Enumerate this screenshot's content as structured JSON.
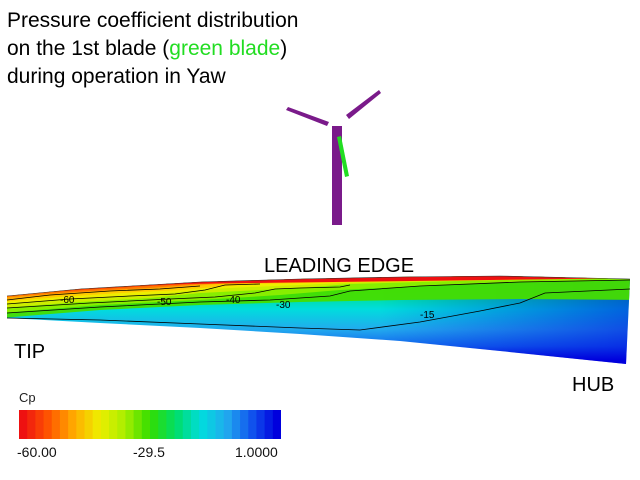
{
  "title": {
    "line1": "Pressure coefficient distribution",
    "line2_before": "on the 1st blade (",
    "line2_highlight": "green blade",
    "line2_after": ")",
    "line3": "during operation in Yaw",
    "highlight_color": "#22dd22"
  },
  "turbine": {
    "tower_color": "#7a1a8a",
    "highlight_blade_color": "#22dd22"
  },
  "labels": {
    "leading_edge": "LEADING EDGE",
    "tip": "TIP",
    "hub": "HUB"
  },
  "contour_labels": [
    "-60",
    "-50",
    "-40",
    "-30",
    "-15"
  ],
  "colorbar": {
    "title": "Cp",
    "min_label": "-60.00",
    "mid_label": "-29.5",
    "max_label": "1.0000",
    "min": -60.0,
    "max": 1.0,
    "stops": [
      "#ee1111",
      "#ff5500",
      "#ffaa00",
      "#eeee00",
      "#aaee00",
      "#33dd00",
      "#00dd66",
      "#00dddd",
      "#22aaee",
      "#1155ee",
      "#0000dd"
    ]
  }
}
